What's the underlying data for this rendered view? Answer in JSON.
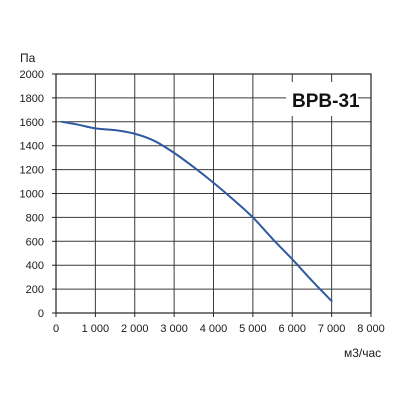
{
  "chart_data": {
    "type": "line",
    "title": "ВРВ-31",
    "xlabel": "м3/час",
    "ylabel": "Па",
    "xlim": [
      0,
      8000
    ],
    "ylim": [
      0,
      2000
    ],
    "xticks": [
      0,
      1000,
      2000,
      3000,
      4000,
      5000,
      6000,
      7000,
      8000
    ],
    "xtick_labels": [
      "0",
      "1 000",
      "2 000",
      "3 000",
      "4 000",
      "5 000",
      "6 000",
      "7 000",
      "8 000"
    ],
    "yticks": [
      0,
      200,
      400,
      600,
      800,
      1000,
      1200,
      1400,
      1600,
      1800,
      2000
    ],
    "ytick_labels": [
      "0",
      "200",
      "400",
      "600",
      "800",
      "1000",
      "1200",
      "1400",
      "1600",
      "1800",
      "2000"
    ],
    "grid": true,
    "series": [
      {
        "color": "#2f5aa0",
        "x": [
          150,
          500,
          1000,
          1500,
          2000,
          2500,
          3000,
          3500,
          4000,
          4500,
          5000,
          5500,
          6000,
          6500,
          7000
        ],
        "y": [
          1600,
          1580,
          1545,
          1530,
          1500,
          1440,
          1340,
          1220,
          1090,
          950,
          800,
          620,
          450,
          270,
          100
        ]
      }
    ]
  }
}
